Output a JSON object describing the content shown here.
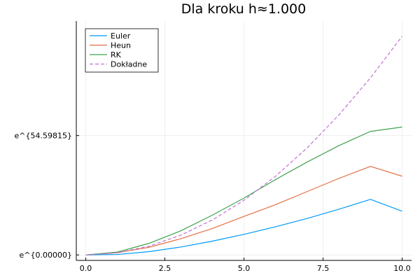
{
  "chart_data": {
    "type": "line",
    "title": "Dla kroku h≈1.000",
    "xlabel": "",
    "ylabel": "",
    "x": [
      0,
      1,
      2,
      3,
      4,
      5,
      6,
      7,
      8,
      9,
      10
    ],
    "xlim": [
      -0.3,
      10.3
    ],
    "ylim": [
      -2.5,
      107.0
    ],
    "xticks": [
      {
        "value": 0.0,
        "label": "0.0"
      },
      {
        "value": 2.5,
        "label": "2.5"
      },
      {
        "value": 5.0,
        "label": "5.0"
      },
      {
        "value": 7.5,
        "label": "7.5"
      },
      {
        "value": 10.0,
        "label": "10.0"
      }
    ],
    "yticks": [
      {
        "value": 0.0,
        "label": "e^{0.00000}"
      },
      {
        "value": 54.59815,
        "label": "e^{54.59815}"
      }
    ],
    "grid": true,
    "legend": "top-left",
    "series": [
      {
        "name": "Euler",
        "color": "#009AFA",
        "dash": false,
        "values": [
          0.0,
          0.2,
          1.5,
          3.6,
          6.3,
          9.4,
          12.9,
          16.7,
          20.9,
          25.4,
          20.0
        ]
      },
      {
        "name": "Heun",
        "color": "#E36F47",
        "dash": false,
        "values": [
          0.0,
          1.0,
          3.5,
          7.4,
          12.1,
          17.6,
          23.0,
          29.0,
          35.0,
          40.5,
          36.0
        ]
      },
      {
        "name": "RK",
        "color": "#3EA44E",
        "dash": false,
        "values": [
          0.0,
          1.3,
          5.3,
          11.0,
          18.2,
          26.0,
          34.5,
          42.5,
          50.0,
          56.5,
          58.5
        ]
      },
      {
        "name": "Dokładne",
        "color": "#C271D2",
        "dash": true,
        "values": [
          0.0,
          1.0,
          4.0,
          9.0,
          16.0,
          25.0,
          36.0,
          49.0,
          64.0,
          81.0,
          100.0
        ]
      }
    ]
  }
}
